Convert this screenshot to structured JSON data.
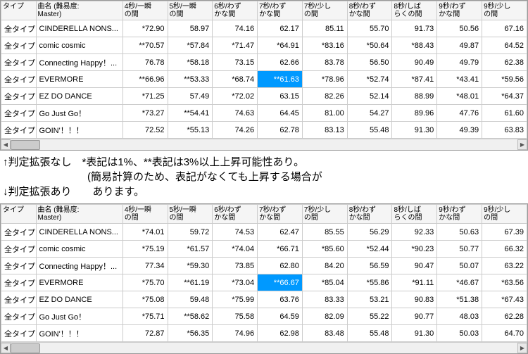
{
  "headers": [
    "タイプ",
    "曲名 (難易度:\nMaster)",
    "4秒/一瞬\nの間",
    "5秒/一瞬\nの間",
    "6秒/わず\nかな間",
    "7秒/わず\nかな間",
    "7秒/少し\nの間",
    "8秒/わず\nかな間",
    "8秒/しば\nらくの間",
    "9秒/わず\nかな間",
    "9秒/少し\nの間"
  ],
  "type_label": "全タイプ",
  "songs": [
    "CINDERELLA NONS...",
    "comic cosmic",
    "Connecting Happy！...",
    "EVERMORE",
    "EZ DO DANCE",
    "Go Just Go！",
    "GOIN'！！！"
  ],
  "hl_cell": {
    "row": 3,
    "col": 3
  },
  "table1": [
    [
      "*72.90",
      "58.97",
      "74.16",
      "62.17",
      "85.11",
      "55.70",
      "91.73",
      "50.56",
      "67.16"
    ],
    [
      "**70.57",
      "*57.84",
      "*71.47",
      "*64.91",
      "*83.16",
      "*50.64",
      "*88.43",
      "49.87",
      "64.52"
    ],
    [
      "76.78",
      "*58.18",
      "73.15",
      "62.66",
      "83.78",
      "56.50",
      "90.49",
      "49.79",
      "62.38"
    ],
    [
      "**66.96",
      "**53.33",
      "*68.74",
      "**61.63",
      "*78.96",
      "*52.74",
      "*87.41",
      "*43.41",
      "*59.56"
    ],
    [
      "*71.25",
      "57.49",
      "*72.02",
      "63.15",
      "82.26",
      "52.14",
      "88.99",
      "*48.01",
      "*64.37"
    ],
    [
      "*73.27",
      "**54.41",
      "74.63",
      "64.45",
      "81.00",
      "54.27",
      "89.96",
      "47.76",
      "61.60"
    ],
    [
      "72.52",
      "*55.13",
      "74.26",
      "62.78",
      "83.13",
      "55.48",
      "91.30",
      "49.39",
      "63.83"
    ]
  ],
  "table2": [
    [
      "*74.01",
      "59.72",
      "74.53",
      "62.47",
      "85.55",
      "56.29",
      "92.33",
      "50.63",
      "67.39"
    ],
    [
      "*75.19",
      "*61.57",
      "*74.04",
      "*66.71",
      "*85.60",
      "*52.44",
      "*90.23",
      "50.77",
      "66.32"
    ],
    [
      "77.34",
      "*59.30",
      "73.85",
      "62.80",
      "84.20",
      "56.59",
      "90.47",
      "50.07",
      "63.22"
    ],
    [
      "*75.70",
      "**61.19",
      "*73.04",
      "**66.67",
      "*85.04",
      "*55.86",
      "*91.11",
      "*46.67",
      "*63.56"
    ],
    [
      "*75.08",
      "59.48",
      "*75.99",
      "63.76",
      "83.33",
      "53.21",
      "90.83",
      "*51.38",
      "*67.43"
    ],
    [
      "*75.71",
      "**58.62",
      "75.58",
      "64.59",
      "82.09",
      "55.22",
      "90.77",
      "48.03",
      "62.28"
    ],
    [
      "72.87",
      "*56.35",
      "74.96",
      "62.98",
      "83.48",
      "55.48",
      "91.30",
      "50.03",
      "64.70"
    ]
  ],
  "note1": "↑判定拡張なし　*表記は1%、**表記は3%以上上昇可能性あり。",
  "note2": "　　　　　　　　(簡易計算のため、表記がなくても上昇する場合が",
  "note3": "↓判定拡張あり　　あります。",
  "colors": {
    "highlight": "#0099ff"
  }
}
